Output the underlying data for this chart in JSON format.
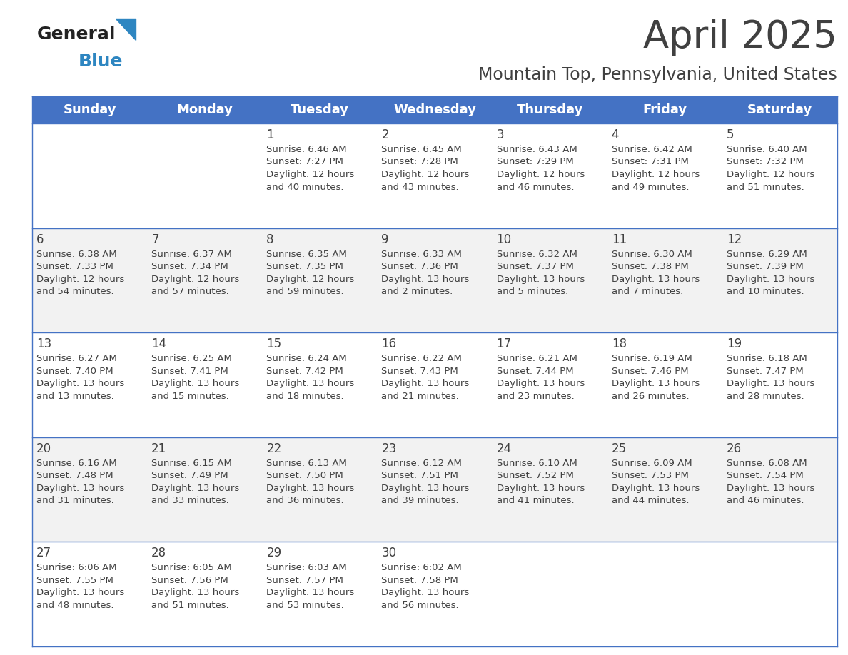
{
  "title": "April 2025",
  "subtitle": "Mountain Top, Pennsylvania, United States",
  "header_color": "#4472C4",
  "header_text_color": "#FFFFFF",
  "header_days": [
    "Sunday",
    "Monday",
    "Tuesday",
    "Wednesday",
    "Thursday",
    "Friday",
    "Saturday"
  ],
  "row_colors": [
    "#FFFFFF",
    "#F2F2F2",
    "#FFFFFF",
    "#F2F2F2",
    "#FFFFFF"
  ],
  "border_color": "#4472C4",
  "text_color": "#404040",
  "day_number_color": "#404040",
  "calendar": [
    [
      {
        "day": null,
        "info": null
      },
      {
        "day": null,
        "info": null
      },
      {
        "day": "1",
        "info": "Sunrise: 6:46 AM\nSunset: 7:27 PM\nDaylight: 12 hours\nand 40 minutes."
      },
      {
        "day": "2",
        "info": "Sunrise: 6:45 AM\nSunset: 7:28 PM\nDaylight: 12 hours\nand 43 minutes."
      },
      {
        "day": "3",
        "info": "Sunrise: 6:43 AM\nSunset: 7:29 PM\nDaylight: 12 hours\nand 46 minutes."
      },
      {
        "day": "4",
        "info": "Sunrise: 6:42 AM\nSunset: 7:31 PM\nDaylight: 12 hours\nand 49 minutes."
      },
      {
        "day": "5",
        "info": "Sunrise: 6:40 AM\nSunset: 7:32 PM\nDaylight: 12 hours\nand 51 minutes."
      }
    ],
    [
      {
        "day": "6",
        "info": "Sunrise: 6:38 AM\nSunset: 7:33 PM\nDaylight: 12 hours\nand 54 minutes."
      },
      {
        "day": "7",
        "info": "Sunrise: 6:37 AM\nSunset: 7:34 PM\nDaylight: 12 hours\nand 57 minutes."
      },
      {
        "day": "8",
        "info": "Sunrise: 6:35 AM\nSunset: 7:35 PM\nDaylight: 12 hours\nand 59 minutes."
      },
      {
        "day": "9",
        "info": "Sunrise: 6:33 AM\nSunset: 7:36 PM\nDaylight: 13 hours\nand 2 minutes."
      },
      {
        "day": "10",
        "info": "Sunrise: 6:32 AM\nSunset: 7:37 PM\nDaylight: 13 hours\nand 5 minutes."
      },
      {
        "day": "11",
        "info": "Sunrise: 6:30 AM\nSunset: 7:38 PM\nDaylight: 13 hours\nand 7 minutes."
      },
      {
        "day": "12",
        "info": "Sunrise: 6:29 AM\nSunset: 7:39 PM\nDaylight: 13 hours\nand 10 minutes."
      }
    ],
    [
      {
        "day": "13",
        "info": "Sunrise: 6:27 AM\nSunset: 7:40 PM\nDaylight: 13 hours\nand 13 minutes."
      },
      {
        "day": "14",
        "info": "Sunrise: 6:25 AM\nSunset: 7:41 PM\nDaylight: 13 hours\nand 15 minutes."
      },
      {
        "day": "15",
        "info": "Sunrise: 6:24 AM\nSunset: 7:42 PM\nDaylight: 13 hours\nand 18 minutes."
      },
      {
        "day": "16",
        "info": "Sunrise: 6:22 AM\nSunset: 7:43 PM\nDaylight: 13 hours\nand 21 minutes."
      },
      {
        "day": "17",
        "info": "Sunrise: 6:21 AM\nSunset: 7:44 PM\nDaylight: 13 hours\nand 23 minutes."
      },
      {
        "day": "18",
        "info": "Sunrise: 6:19 AM\nSunset: 7:46 PM\nDaylight: 13 hours\nand 26 minutes."
      },
      {
        "day": "19",
        "info": "Sunrise: 6:18 AM\nSunset: 7:47 PM\nDaylight: 13 hours\nand 28 minutes."
      }
    ],
    [
      {
        "day": "20",
        "info": "Sunrise: 6:16 AM\nSunset: 7:48 PM\nDaylight: 13 hours\nand 31 minutes."
      },
      {
        "day": "21",
        "info": "Sunrise: 6:15 AM\nSunset: 7:49 PM\nDaylight: 13 hours\nand 33 minutes."
      },
      {
        "day": "22",
        "info": "Sunrise: 6:13 AM\nSunset: 7:50 PM\nDaylight: 13 hours\nand 36 minutes."
      },
      {
        "day": "23",
        "info": "Sunrise: 6:12 AM\nSunset: 7:51 PM\nDaylight: 13 hours\nand 39 minutes."
      },
      {
        "day": "24",
        "info": "Sunrise: 6:10 AM\nSunset: 7:52 PM\nDaylight: 13 hours\nand 41 minutes."
      },
      {
        "day": "25",
        "info": "Sunrise: 6:09 AM\nSunset: 7:53 PM\nDaylight: 13 hours\nand 44 minutes."
      },
      {
        "day": "26",
        "info": "Sunrise: 6:08 AM\nSunset: 7:54 PM\nDaylight: 13 hours\nand 46 minutes."
      }
    ],
    [
      {
        "day": "27",
        "info": "Sunrise: 6:06 AM\nSunset: 7:55 PM\nDaylight: 13 hours\nand 48 minutes."
      },
      {
        "day": "28",
        "info": "Sunrise: 6:05 AM\nSunset: 7:56 PM\nDaylight: 13 hours\nand 51 minutes."
      },
      {
        "day": "29",
        "info": "Sunrise: 6:03 AM\nSunset: 7:57 PM\nDaylight: 13 hours\nand 53 minutes."
      },
      {
        "day": "30",
        "info": "Sunrise: 6:02 AM\nSunset: 7:58 PM\nDaylight: 13 hours\nand 56 minutes."
      },
      {
        "day": null,
        "info": null
      },
      {
        "day": null,
        "info": null
      },
      {
        "day": null,
        "info": null
      }
    ]
  ],
  "logo_general_color": "#222222",
  "logo_blue_color": "#2E86C1",
  "title_fontsize": 38,
  "subtitle_fontsize": 17,
  "header_fontsize": 13,
  "day_num_fontsize": 12,
  "info_fontsize": 9.5,
  "fig_width": 11.88,
  "fig_height": 9.18,
  "dpi": 100
}
